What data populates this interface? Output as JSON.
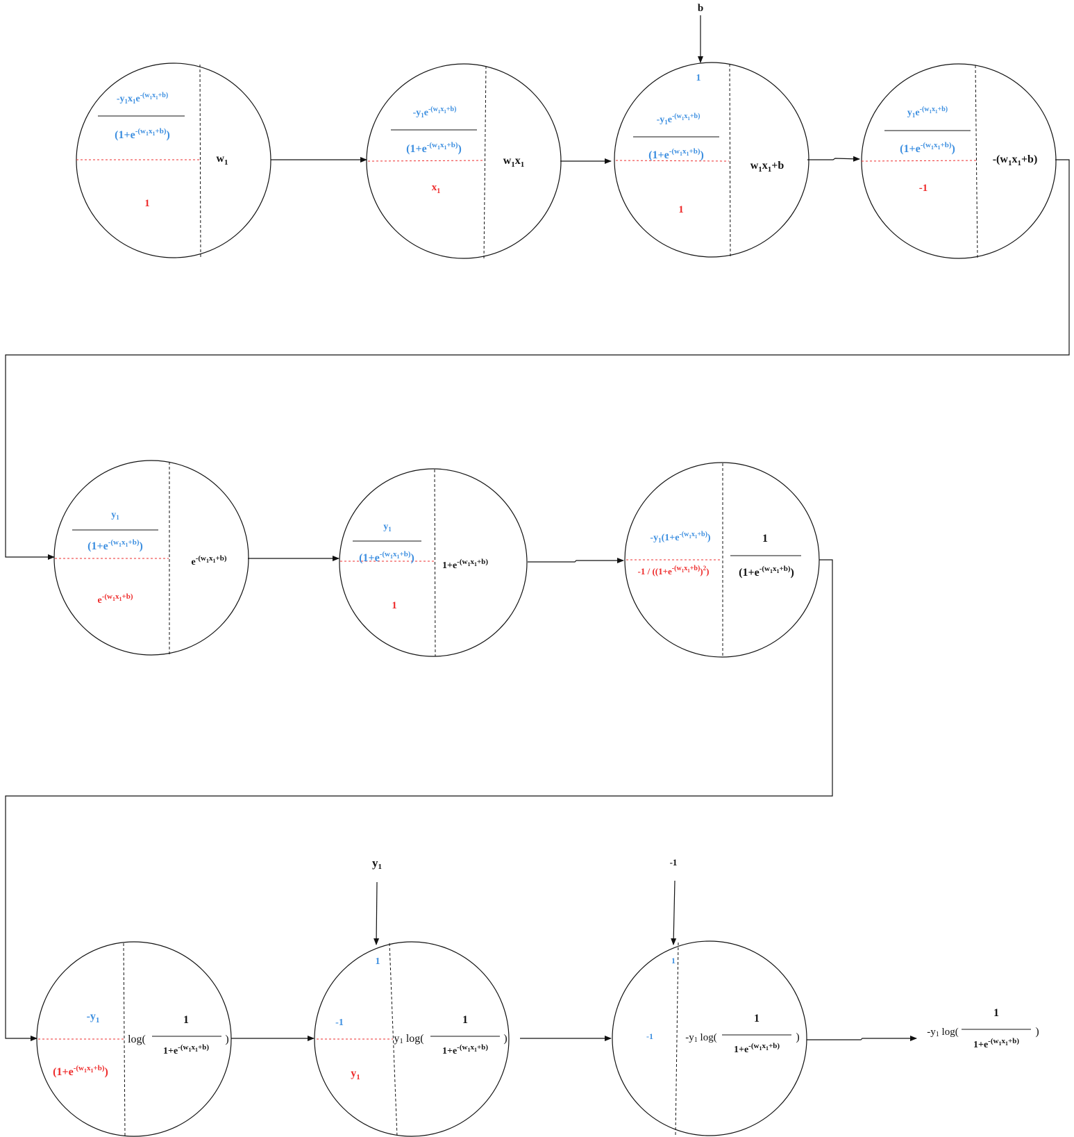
{
  "colors": {
    "gradient": "#3d8fe0",
    "local": "#ee2b2b",
    "value": "#111111"
  },
  "inputs": {
    "b": "b",
    "y1": "y1",
    "neg1": "-1"
  },
  "nodes": [
    {
      "id": "w1",
      "grad": [
        "-y1x1e-(w1x1+b)",
        "(1+e-(w1x1+b))"
      ],
      "local": "1",
      "value": "w1"
    },
    {
      "id": "w1x1",
      "grad": [
        "-y1e-(w1x1+b)",
        "(1+e-(w1x1+b))"
      ],
      "local": "x1",
      "value": "w1x1"
    },
    {
      "id": "w1x1+b",
      "grad_top": "1",
      "grad": [
        "-y1e-(w1x1+b)",
        "(1+e-(w1x1+b))"
      ],
      "local": "1",
      "value": "w1x1+b"
    },
    {
      "id": "neg",
      "grad": [
        "y1e-(w1x1+b)",
        "(1+e-(w1x1+b))"
      ],
      "local": "-1",
      "value": "-(w1x1+b)"
    },
    {
      "id": "exp",
      "grad": [
        "y1",
        "(1+e-(w1x1+b))"
      ],
      "local": "e-(w1x1+b)",
      "value": "e-(w1x1+b)"
    },
    {
      "id": "add1",
      "grad": [
        "y1",
        "(1+e-(w1x1+b))"
      ],
      "local": "1",
      "value": "1+e-(w1x1+b)"
    },
    {
      "id": "recip",
      "grad": [
        "-y1(1+e-(w1x1+b))"
      ],
      "local": "-1 / ((1+e-(w1x1+b))2)",
      "value": [
        "1",
        "(1+e-(w1x1+b))"
      ]
    },
    {
      "id": "log",
      "grad": [
        "-y1"
      ],
      "local": "(1+e-(w1x1+b))",
      "value": [
        "log(",
        "1",
        "1+e-(w1x1+b)",
        ")"
      ]
    },
    {
      "id": "mul_y",
      "grad_top": "1",
      "grad": [
        "-1"
      ],
      "local": "y1",
      "value": [
        "y1 log(",
        "1",
        "1+e-(w1x1+b)",
        ")"
      ]
    },
    {
      "id": "mul_neg",
      "grad_top": "1",
      "grad": [
        "-1"
      ],
      "value": [
        "-y1 log(",
        "1",
        "1+e-(w1x1+b)",
        ")"
      ]
    }
  ],
  "output": [
    "-y1 log(",
    "1",
    "1+e-(w1x1+b)",
    ")"
  ]
}
